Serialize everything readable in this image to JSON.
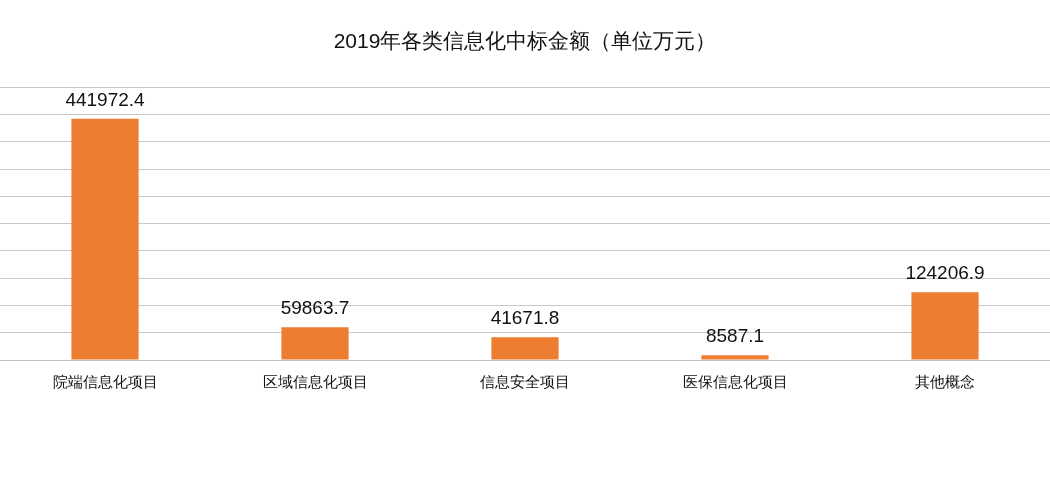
{
  "chart_data": {
    "type": "bar",
    "title": "2019年各类信息化中标金额（单位万元）",
    "categories": [
      "院端信息化项目",
      "区域信息化项目",
      "信息安全项目",
      "医保信息化项目",
      "其他概念"
    ],
    "values": [
      441972.4,
      59863.7,
      41671.8,
      8587.1,
      124206.9
    ],
    "color": "#ed7d31",
    "ylim": [
      0,
      500000
    ],
    "yticks": [
      {
        "value": 0,
        "label": null
      },
      {
        "value": 50000,
        "label": null
      },
      {
        "value": 100000,
        "label": null
      },
      {
        "value": 150000,
        "label": null
      },
      {
        "value": 200000,
        "label": null
      },
      {
        "value": 250000,
        "label": null
      },
      {
        "value": 300000,
        "label": null
      },
      {
        "value": 350000,
        "label": null
      },
      {
        "value": 400000,
        "label": null
      },
      {
        "value": 450000,
        "label": null
      },
      {
        "value": 500000,
        "label": null
      }
    ],
    "grid": "y",
    "data_labels": true,
    "tick_labels": "x"
  }
}
